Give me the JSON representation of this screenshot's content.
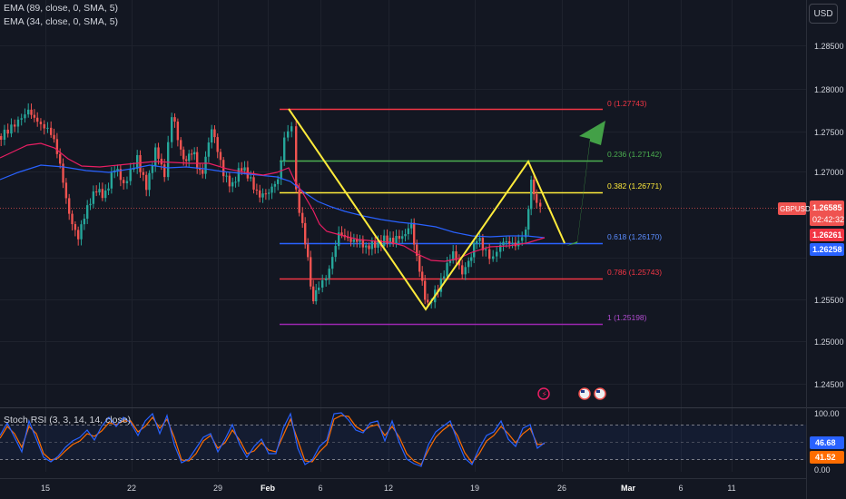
{
  "currency": "USD",
  "symbol": "GBPUSD",
  "price": "1.26585",
  "countdown": "02:42:32",
  "ema89_value": "1.26261",
  "ema34_value": "1.26258",
  "legend": {
    "ema89": "EMA (89, close, 0, SMA, 5)",
    "ema34": "EMA (34, close, 0, SMA, 5)",
    "stoch": "Stoch RSI (3, 3, 14, 14, close)"
  },
  "colors": {
    "background": "#131722",
    "up": "#26a69a",
    "down": "#ef5350",
    "ema89": "#2962ff",
    "ema34": "#e91e63",
    "zigzag": "#ffeb3b",
    "arrow": "#43a047",
    "stoch_k": "#2962ff",
    "stoch_d": "#ff6d00",
    "fib_0": "#f23645",
    "fib_0236": "#4caf50",
    "fib_0382": "#ffeb3b",
    "fib_0618": "#2962ff",
    "fib_0786": "#f23645",
    "fib_1": "#9c27b0"
  },
  "chart_data": {
    "type": "candlestick",
    "title": "",
    "price_axis": {
      "ticks": [
        "1.28500",
        "1.28000",
        "1.27500",
        "1.27000",
        "1.25500",
        "1.25000",
        "1.24500"
      ],
      "ylim": [
        1.2425,
        1.2885
      ]
    },
    "time_axis": {
      "ticks": [
        "15",
        "22",
        "29",
        "Feb",
        "6",
        "12",
        "19",
        "26",
        "Mar",
        "6",
        "11"
      ]
    },
    "fibonacci": [
      {
        "ratio": "0",
        "price": "1.27743",
        "label": "0 (1.27743)"
      },
      {
        "ratio": "0.236",
        "price": "1.27142",
        "label": "0.236 (1.27142)"
      },
      {
        "ratio": "0.382",
        "price": "1.26771",
        "label": "0.382 (1.26771)"
      },
      {
        "ratio": "0.618",
        "price": "1.26170",
        "label": "0.618 (1.26170)"
      },
      {
        "ratio": "0.786",
        "price": "1.25743",
        "label": "0.786 (1.25743)"
      },
      {
        "ratio": "1",
        "price": "1.25198",
        "label": "1 (1.25198)"
      }
    ],
    "price_labels": [
      {
        "name": "GBPUSD",
        "value": "1.26585"
      },
      {
        "name": "EMA 89",
        "value": "1.26261"
      },
      {
        "name": "EMA 34",
        "value": "1.26258"
      }
    ],
    "stoch_rsi": {
      "ticks": [
        "100.00",
        "0.00"
      ],
      "ylim": [
        0,
        100
      ],
      "bands": [
        20,
        50,
        80
      ],
      "k_last": "46.68",
      "d_last": "41.52"
    }
  }
}
